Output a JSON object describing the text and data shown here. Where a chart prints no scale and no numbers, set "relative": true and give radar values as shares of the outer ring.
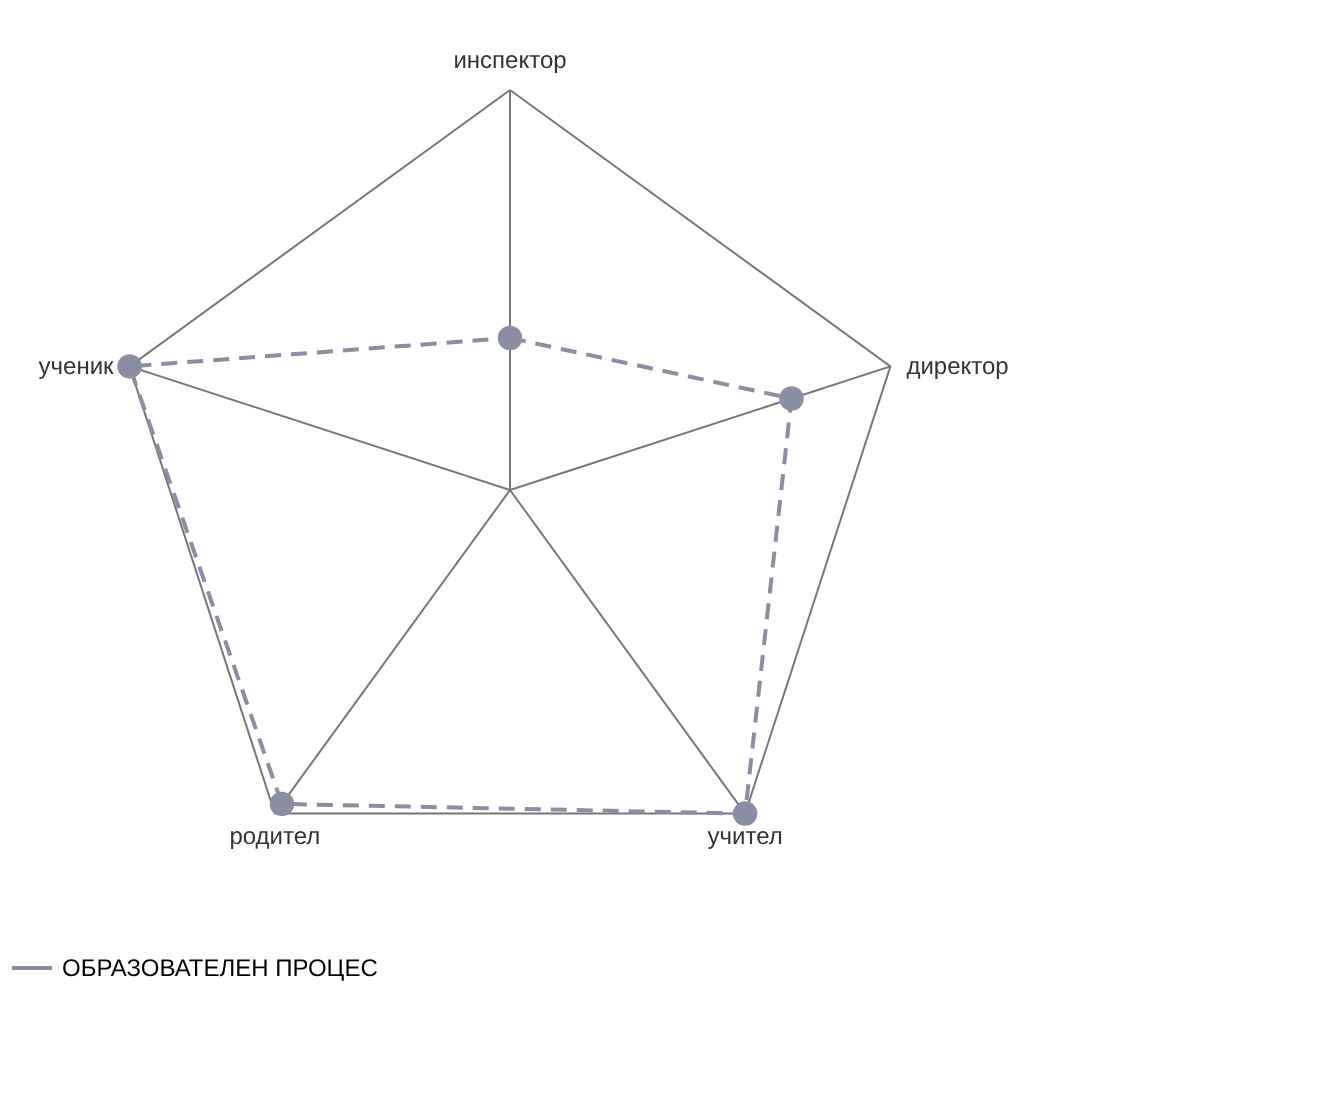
{
  "chart_data": {
    "type": "radar",
    "relative": true,
    "categories": [
      "инспектор",
      "директор",
      "учител",
      "родител",
      "ученик"
    ],
    "series": [
      {
        "name": "ОБРАЗОВАТЕЛЕН ПРОЦЕС",
        "color": "#8c8ca2",
        "values": [
          0.38,
          0.74,
          1.0,
          0.97,
          1.0
        ]
      }
    ],
    "grid": true,
    "legend": "bottom",
    "marker": "circle",
    "line_style": "dashed"
  }
}
